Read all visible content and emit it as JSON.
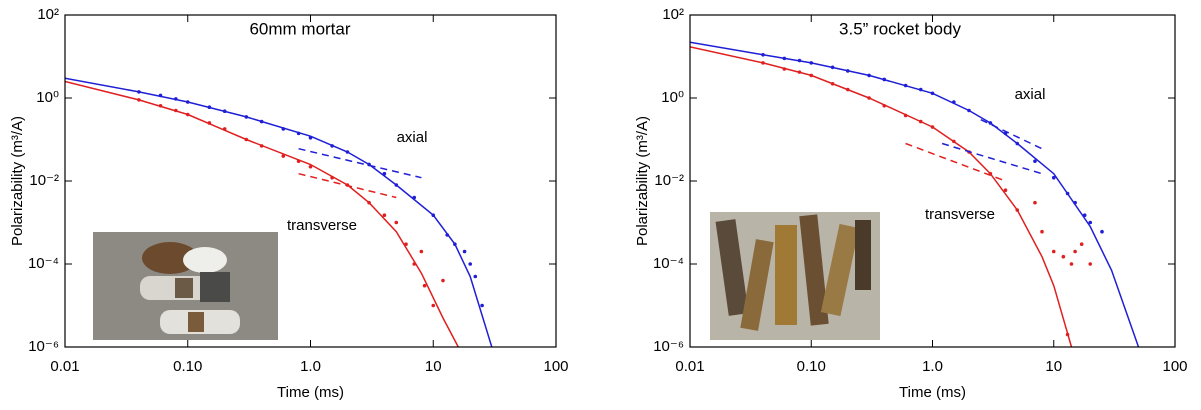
{
  "chart_data": [
    {
      "type": "scatter",
      "title": "60mm mortar",
      "x_label": "Time (ms)",
      "y_label": "Polarizability (m³/A)",
      "xscale": "log",
      "yscale": "log",
      "xlim": [
        0.01,
        100
      ],
      "ylim": [
        1e-06,
        100
      ],
      "xticks": [
        0.01,
        {
          "value": 0.1,
          "label": "0.10"
        },
        {
          "value": 1,
          "label": "1.0"
        },
        10,
        100
      ],
      "yticks": [
        {
          "value": 1e-06,
          "label": "10⁻⁶"
        },
        {
          "value": 0.0001,
          "label": "10⁻⁴"
        },
        {
          "value": 0.01,
          "label": "10⁻²"
        },
        {
          "value": 1,
          "label": "10⁰"
        },
        {
          "value": 100,
          "label": "10²"
        }
      ],
      "annotations": [
        "axial",
        "transverse"
      ],
      "series": [
        {
          "style": "points",
          "color": "#1f1fd6",
          "x": [
            0.04,
            0.06,
            0.08,
            0.1,
            0.15,
            0.2,
            0.3,
            0.4,
            0.6,
            0.8,
            1,
            1.5,
            2,
            3,
            4,
            5,
            7,
            10,
            13,
            15,
            18,
            20,
            22,
            25
          ],
          "values": [
            1.4,
            1.15,
            0.95,
            0.8,
            0.6,
            0.48,
            0.35,
            0.27,
            0.18,
            0.14,
            0.11,
            0.07,
            0.05,
            0.025,
            0.015,
            0.008,
            0.004,
            0.0015,
            0.0005,
            0.0003,
            0.0002,
            0.0001,
            5e-05,
            1e-05
          ]
        },
        {
          "style": "points",
          "color": "#e02020",
          "x": [
            0.04,
            0.06,
            0.08,
            0.1,
            0.15,
            0.2,
            0.3,
            0.4,
            0.6,
            0.8,
            1,
            1.5,
            2,
            3,
            4,
            5,
            6,
            7,
            8,
            8.5,
            10,
            12
          ],
          "values": [
            0.9,
            0.65,
            0.5,
            0.4,
            0.25,
            0.18,
            0.1,
            0.07,
            0.04,
            0.03,
            0.022,
            0.012,
            0.008,
            0.003,
            0.0015,
            0.001,
            0.0003,
            0.0001,
            0.0002,
            3e-05,
            1e-05,
            4e-05
          ]
        },
        {
          "style": "solid",
          "color": "#1f1fd6",
          "x": [
            0.01,
            0.04,
            0.1,
            0.3,
            1,
            2,
            3,
            5,
            10,
            15,
            20,
            30
          ],
          "values": [
            3,
            1.4,
            0.8,
            0.35,
            0.12,
            0.05,
            0.025,
            0.008,
            0.0015,
            0.0003,
            5e-05,
            1e-06
          ]
        },
        {
          "style": "solid",
          "color": "#e02020",
          "x": [
            0.01,
            0.04,
            0.1,
            0.3,
            1,
            2,
            3,
            5,
            8,
            12,
            16
          ],
          "values": [
            2.5,
            0.9,
            0.4,
            0.1,
            0.025,
            0.008,
            0.003,
            0.0006,
            6e-05,
            5e-06,
            1e-06
          ]
        },
        {
          "style": "dashed",
          "color": "#1f1fd6",
          "x": [
            0.8,
            8
          ],
          "values": [
            0.06,
            0.012
          ]
        },
        {
          "style": "dashed",
          "color": "#e02020",
          "x": [
            0.8,
            5
          ],
          "values": [
            0.015,
            0.004
          ]
        }
      ]
    },
    {
      "type": "scatter",
      "title": "3.5” rocket body",
      "x_label": "Time (ms)",
      "y_label": "Polarizability (m³/A)",
      "xscale": "log",
      "yscale": "log",
      "xlim": [
        0.01,
        100
      ],
      "ylim": [
        1e-06,
        100
      ],
      "xticks": [
        0.01,
        {
          "value": 0.1,
          "label": "0.10"
        },
        {
          "value": 1,
          "label": "1.0"
        },
        10,
        100
      ],
      "yticks": [
        {
          "value": 1e-06,
          "label": "10⁻⁶"
        },
        {
          "value": 0.0001,
          "label": "10⁻⁴"
        },
        {
          "value": 0.01,
          "label": "10⁻²"
        },
        {
          "value": 1,
          "label": "10⁰"
        },
        {
          "value": 100,
          "label": "10²"
        }
      ],
      "annotations": [
        "axial",
        "transverse"
      ],
      "series": [
        {
          "style": "points",
          "color": "#1f1fd6",
          "x": [
            0.04,
            0.06,
            0.08,
            0.1,
            0.15,
            0.2,
            0.3,
            0.4,
            0.6,
            0.8,
            1,
            1.5,
            2,
            3,
            4,
            5,
            7,
            10,
            13,
            15,
            18,
            20,
            25
          ],
          "values": [
            11,
            9,
            8,
            7,
            5.5,
            4.5,
            3.5,
            2.8,
            2,
            1.6,
            1.3,
            0.8,
            0.5,
            0.25,
            0.14,
            0.08,
            0.03,
            0.012,
            0.005,
            0.003,
            0.0015,
            0.001,
            0.0006
          ]
        },
        {
          "style": "points",
          "color": "#e02020",
          "x": [
            0.04,
            0.06,
            0.08,
            0.1,
            0.15,
            0.2,
            0.3,
            0.4,
            0.6,
            0.8,
            1,
            1.5,
            2,
            3,
            4,
            5,
            7,
            8,
            10,
            12,
            14,
            15,
            17,
            20,
            13
          ],
          "values": [
            7,
            5,
            4.2,
            3.5,
            2.2,
            1.6,
            1,
            0.65,
            0.38,
            0.27,
            0.2,
            0.09,
            0.05,
            0.015,
            0.006,
            0.002,
            0.003,
            0.0006,
            0.0002,
            0.00015,
            0.0001,
            0.0002,
            0.0003,
            0.0001,
            2e-06
          ]
        },
        {
          "style": "solid",
          "color": "#1f1fd6",
          "x": [
            0.01,
            0.04,
            0.1,
            0.3,
            1,
            2,
            3,
            5,
            10,
            20,
            30,
            50
          ],
          "values": [
            22,
            11,
            7,
            3.5,
            1.3,
            0.5,
            0.25,
            0.08,
            0.015,
            0.0008,
            7e-05,
            1e-06
          ]
        },
        {
          "style": "solid",
          "color": "#e02020",
          "x": [
            0.01,
            0.04,
            0.1,
            0.3,
            1,
            2,
            3,
            5,
            8,
            10,
            14
          ],
          "values": [
            17,
            7,
            3.5,
            1,
            0.2,
            0.05,
            0.015,
            0.002,
            0.00015,
            3e-05,
            1e-06
          ]
        },
        {
          "style": "dashed",
          "color": "#1f1fd6",
          "x": [
            2.5,
            8
          ],
          "values": [
            0.3,
            0.06
          ]
        },
        {
          "style": "dashed",
          "color": "#1f1fd6",
          "x": [
            1.2,
            8
          ],
          "values": [
            0.08,
            0.015
          ]
        },
        {
          "style": "dashed",
          "color": "#e02020",
          "x": [
            0.6,
            4
          ],
          "values": [
            0.08,
            0.01
          ]
        }
      ]
    }
  ]
}
